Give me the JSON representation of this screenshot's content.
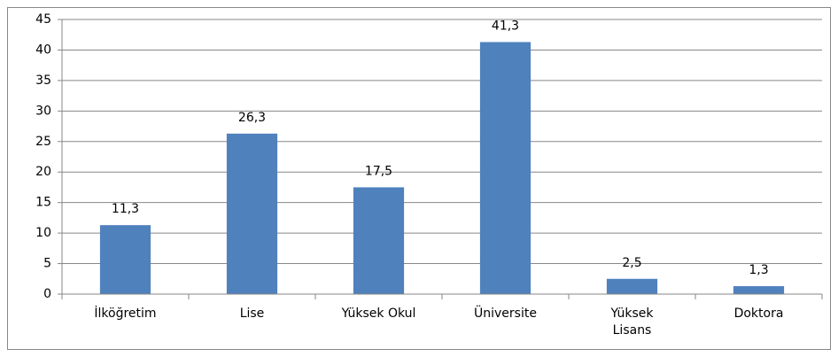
{
  "chart_data": {
    "type": "bar",
    "categories": [
      "İlköğretim",
      "Lise",
      "Yüksek Okul",
      "Üniversite",
      "Yüksek Lisans",
      "Doktora"
    ],
    "values": [
      11.3,
      26.3,
      17.5,
      41.3,
      2.5,
      1.3
    ],
    "value_labels": [
      "11,3",
      "26,3",
      "17,5",
      "41,3",
      "2,5",
      "1,3"
    ],
    "color": "#4f81bd",
    "ylim": [
      0,
      45
    ],
    "yticks": [
      0,
      5,
      10,
      15,
      20,
      25,
      30,
      35,
      40,
      45
    ],
    "grid": true
  }
}
